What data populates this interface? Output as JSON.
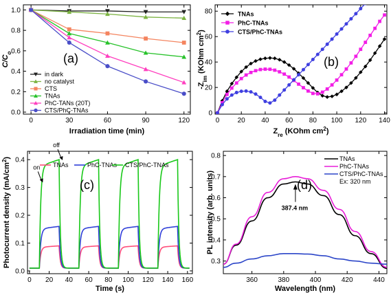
{
  "chart_data": [
    {
      "id": "a",
      "type": "line",
      "panel_label": "(a)",
      "xlabel": "Irradiation time (min)",
      "ylabel": "C/Co",
      "xlim": [
        -6,
        125
      ],
      "ylim": [
        -0.02,
        1.05
      ],
      "xticks": [
        "0",
        "30",
        "60",
        "90",
        "120"
      ],
      "yticks": [
        "0.0",
        "0.2",
        "0.4",
        "0.6",
        "0.8",
        "1.0"
      ],
      "legend_position": "lower-left",
      "x": [
        0,
        30,
        60,
        90,
        120
      ],
      "series": [
        {
          "name": "in dark",
          "color": "#222222",
          "marker": "triangle-down",
          "values": [
            1.0,
            0.99,
            0.99,
            0.98,
            0.98
          ]
        },
        {
          "name": "no catalyst",
          "color": "#7cb342",
          "marker": "triangle-up",
          "values": [
            1.0,
            0.98,
            0.96,
            0.93,
            0.92
          ]
        },
        {
          "name": "CTS",
          "color": "#f4845f",
          "marker": "square",
          "values": [
            1.0,
            0.81,
            0.77,
            0.72,
            0.68
          ]
        },
        {
          "name": "TNAs",
          "color": "#27c22a",
          "marker": "triangle-up",
          "values": [
            1.0,
            0.77,
            0.68,
            0.58,
            0.54
          ]
        },
        {
          "name": "PhC-TANs (20T)",
          "color": "#ff3fbf",
          "marker": "triangle-up",
          "values": [
            1.0,
            0.73,
            0.55,
            0.42,
            0.29
          ]
        },
        {
          "name": "CTS/PhC-TNAs",
          "color": "#4a4ec8",
          "marker": "circle",
          "values": [
            1.0,
            0.68,
            0.45,
            0.3,
            0.18
          ]
        }
      ]
    },
    {
      "id": "b",
      "type": "line",
      "panel_label": "(b)",
      "xlabel": "Zre (KOhm cm2)",
      "ylabel": "-Zim (KOhm cm2)",
      "xlim": [
        -2,
        142
      ],
      "ylim": [
        -1,
        85
      ],
      "xticks": [
        "0",
        "20",
        "40",
        "60",
        "80",
        "100",
        "120",
        "140"
      ],
      "yticks": [
        "0",
        "20",
        "40",
        "60",
        "80"
      ],
      "legend_position": "top-left",
      "series": [
        {
          "name": "TNAs",
          "color": "#000000",
          "marker": "diamond",
          "x": [
            0,
            4,
            8,
            12,
            16,
            20,
            24,
            28,
            32,
            36,
            40,
            44,
            48,
            52,
            56,
            60,
            64,
            68,
            72,
            76,
            80,
            84,
            88,
            92,
            96,
            100,
            104,
            108,
            112,
            116,
            120,
            124,
            128,
            132,
            136,
            140
          ],
          "y": [
            0,
            9.5,
            17.0,
            23.0,
            28.0,
            32.5,
            36.0,
            38.8,
            40.8,
            42.2,
            42.9,
            43.2,
            42.9,
            41.8,
            40.0,
            37.6,
            34.7,
            31.2,
            27.4,
            23.5,
            19.6,
            16.0,
            13.5,
            12.5,
            13.0,
            14.5,
            17.0,
            20.0,
            23.5,
            27.5,
            32.0,
            36.5,
            41.5,
            47.0,
            52.5,
            58.0
          ]
        },
        {
          "name": "PhC-TNAs",
          "color": "#f21ee6",
          "marker": "square",
          "x": [
            0,
            4,
            8,
            12,
            16,
            20,
            24,
            28,
            32,
            36,
            40,
            44,
            48,
            52,
            56,
            60,
            64,
            68,
            72,
            76,
            80,
            84,
            88,
            92,
            96,
            100,
            104,
            108,
            112,
            116,
            120,
            124,
            128,
            132,
            136,
            140
          ],
          "y": [
            0,
            8.0,
            14.5,
            19.5,
            23.5,
            27.0,
            29.8,
            31.8,
            33.2,
            34.1,
            34.4,
            34.3,
            33.6,
            32.3,
            30.5,
            28.2,
            25.5,
            22.6,
            19.8,
            17.2,
            15.3,
            15.0,
            16.3,
            18.8,
            22.0,
            25.8,
            30.0,
            34.5,
            39.3,
            44.5,
            50.0,
            55.5,
            61.0,
            66.5,
            72.0,
            77.0
          ]
        },
        {
          "name": "CTS/PhC-TNAs",
          "color": "#3f3fe0",
          "marker": "circle",
          "x": [
            0,
            4,
            8,
            12,
            16,
            20,
            24,
            28,
            32,
            36,
            40,
            44,
            48,
            52,
            56,
            60,
            64,
            68,
            72,
            76,
            80,
            84,
            88,
            92,
            96,
            100,
            104,
            108,
            112,
            116,
            120,
            124,
            128,
            132
          ],
          "y": [
            0,
            6.5,
            11.0,
            14.0,
            16.0,
            17.0,
            17.2,
            16.5,
            14.8,
            12.2,
            9.0,
            7.8,
            10.0,
            14.0,
            18.0,
            22.0,
            26.0,
            30.0,
            34.0,
            38.0,
            42.0,
            46.0,
            50.0,
            54.0,
            58.0,
            62.0,
            66.0,
            70.0,
            74.0,
            78.0,
            82.0,
            86.0,
            90.0,
            94.0
          ]
        }
      ]
    },
    {
      "id": "c",
      "type": "line",
      "panel_label": "(c)",
      "xlabel": "Time (s)",
      "ylabel": "Photocurrent density (mA/cm2)",
      "xlim": [
        -2,
        165
      ],
      "ylim": [
        -0.01,
        0.43
      ],
      "xticks": [
        "0",
        "20",
        "40",
        "60",
        "80",
        "100",
        "120",
        "140",
        "160"
      ],
      "yticks": [
        "0.0",
        "0.1",
        "0.2",
        "0.3",
        "0.4"
      ],
      "legend_position": "top",
      "annotations": [
        {
          "text": "on",
          "x": 10,
          "y": 0.34
        },
        {
          "text": "off",
          "x": 30,
          "y": 0.42
        }
      ],
      "series": [
        {
          "name": "TNAs",
          "color": "#ff4d7a",
          "on_level": 0.09,
          "off_level": 0.01
        },
        {
          "name": "PhC-TNAs",
          "color": "#2f3fd8",
          "on_level": 0.16,
          "off_level": 0.01
        },
        {
          "name": "CTS/PhC-TNAs",
          "color": "#18c818",
          "on_level": 0.4,
          "off_level": 0.01
        }
      ],
      "on_intervals": [
        [
          10,
          30
        ],
        [
          50,
          70
        ],
        [
          90,
          110
        ],
        [
          130,
          150
        ]
      ]
    },
    {
      "id": "d",
      "type": "line",
      "panel_label": "(d)",
      "xlabel": "Wavelength (nm)",
      "ylabel": "PL intensity (arb. units)",
      "xlim": [
        342,
        445
      ],
      "ylim": [
        0.24,
        0.82
      ],
      "xticks": [
        "360",
        "380",
        "400",
        "420",
        "440"
      ],
      "yticks": [
        "0.3",
        "0.4",
        "0.5",
        "0.6",
        "0.7",
        "0.8"
      ],
      "legend_position": "top-right",
      "legend_note": "Ex: 320 nm",
      "peak_annotation": {
        "text": "387.4 nm",
        "x": 387.4,
        "y": 0.58
      },
      "series": [
        {
          "name": "TNAs",
          "color": "#000000",
          "x": [
            342,
            350,
            360,
            370,
            380,
            387.4,
            395,
            405,
            415,
            425,
            435,
            445
          ],
          "y": [
            0.285,
            0.375,
            0.49,
            0.6,
            0.665,
            0.675,
            0.665,
            0.61,
            0.52,
            0.42,
            0.335,
            0.265
          ]
        },
        {
          "name": "PhC-TNAs",
          "color": "#e81ed8",
          "x": [
            342,
            350,
            360,
            370,
            380,
            387.4,
            395,
            405,
            415,
            425,
            435,
            445
          ],
          "y": [
            0.285,
            0.38,
            0.51,
            0.625,
            0.69,
            0.7,
            0.69,
            0.635,
            0.545,
            0.44,
            0.345,
            0.27
          ]
        },
        {
          "name": "CTS/PhC-TNAs",
          "color": "#2b45c8",
          "x": [
            342,
            350,
            360,
            370,
            380,
            387.4,
            395,
            405,
            415,
            425,
            435,
            445
          ],
          "y": [
            0.27,
            0.29,
            0.31,
            0.325,
            0.335,
            0.335,
            0.333,
            0.325,
            0.31,
            0.3,
            0.29,
            0.285
          ]
        }
      ]
    }
  ]
}
